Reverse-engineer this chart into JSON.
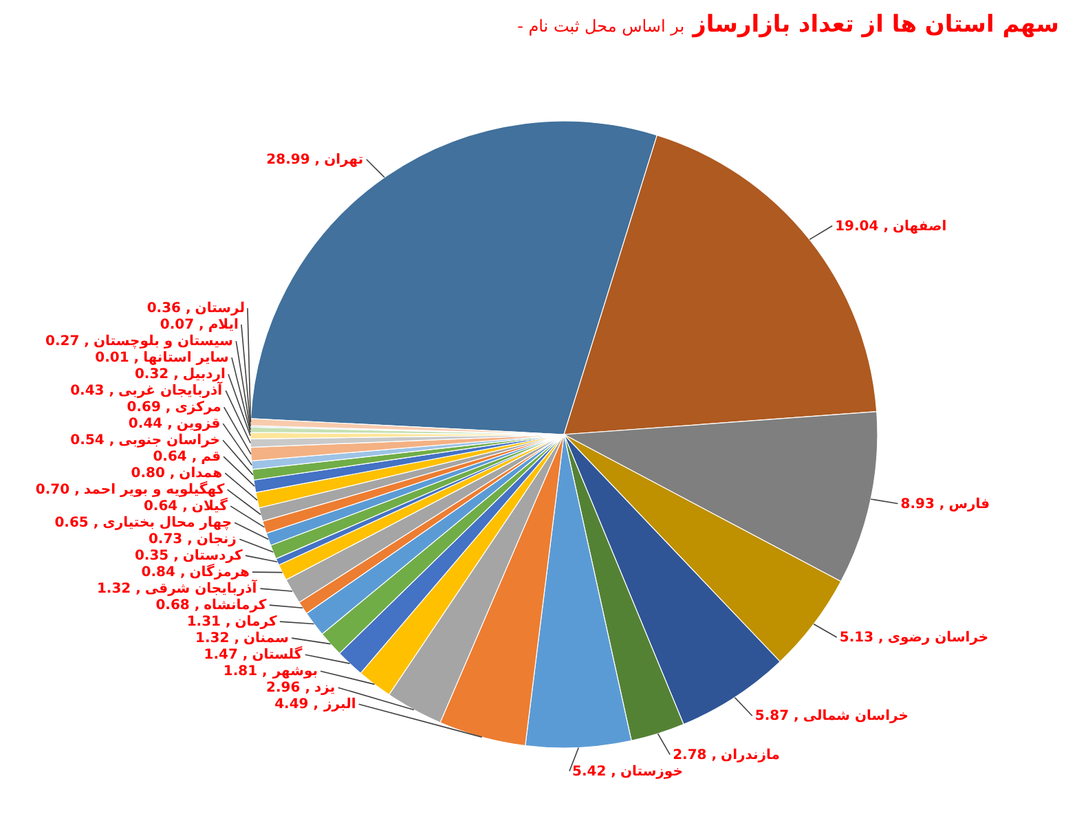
{
  "chart_data": {
    "type": "pie",
    "title": "سهم استان ها از تعداد بازارساز",
    "subtitle": "- بر اساس محل ثبت نام",
    "categories": [
      "تهران",
      "اصفهان",
      "فارس",
      "خراسان رضوی",
      "خراسان شمالی",
      "مازندران",
      "خوزستان",
      "البرز",
      "یزد",
      "بوشهر",
      "گلستان",
      "سمنان",
      "کرمان",
      "کرمانشاه",
      "آذربایجان شرقی",
      "هرمزگان",
      "کردستان",
      "زنجان",
      "چهار محال بختیاری",
      "گیلان",
      "کهگیلویه و بویر احمد",
      "همدان",
      "قم",
      "خراسان جنوبی",
      "قزوین",
      "مرکزی",
      "آذربایجان غربی",
      "اردبیل",
      "سایر استانها",
      "سیستان و بلوچستان",
      "ایلام",
      "لرستان"
    ],
    "values": [
      28.99,
      19.04,
      8.93,
      5.13,
      5.87,
      2.78,
      5.42,
      4.49,
      2.96,
      1.81,
      1.47,
      1.32,
      1.31,
      0.68,
      1.32,
      0.84,
      0.35,
      0.73,
      0.65,
      0.64,
      0.7,
      0.8,
      0.64,
      0.54,
      0.44,
      0.69,
      0.43,
      0.32,
      0.01,
      0.27,
      0.07,
      0.36
    ],
    "value_labels": [
      "28.99 ,",
      "19.04 ,",
      "8.93 ,",
      "5.13 ,",
      "5.87 ,",
      "2.78 ,",
      "5.42 ,",
      "4.49 ,",
      "2.96 ,",
      "1.81 ,",
      "1.47 ,",
      "1.32 ,",
      "1.31 ,",
      "0.68 ,",
      "1.32 ,",
      "0.84 ,",
      "0.35 ,",
      "0.73 ,",
      "0.65 ,",
      "0.64 ,",
      "0.70 ,",
      "0.80 ,",
      "0.64 ,",
      "0.54 ,",
      "0.44 ,",
      "0.69 ,",
      "0.43 ,",
      "0.32 ,",
      "0.01 ,",
      "0.27 ,",
      "0.07 ,",
      "0.36 ,"
    ],
    "colors": [
      "#41719c",
      "#ae5a21",
      "#7f7f7f",
      "#bf9000",
      "#2f5597",
      "#548235",
      "#5b9bd5",
      "#ed7d31",
      "#a5a5a5",
      "#ffc000",
      "#4472c4",
      "#70ad47",
      "#5b9bd5",
      "#ed7d31",
      "#a5a5a5",
      "#ffc000",
      "#4472c4",
      "#70ad47",
      "#5b9bd5",
      "#ed7d31",
      "#a5a5a5",
      "#ffc000",
      "#4472c4",
      "#70ad47",
      "#9dc3e6",
      "#f4b183",
      "#c9c9c9",
      "#ffe699",
      "#b4c7e7",
      "#c5e0b4",
      "#bdd7ee",
      "#f8cbad"
    ]
  }
}
